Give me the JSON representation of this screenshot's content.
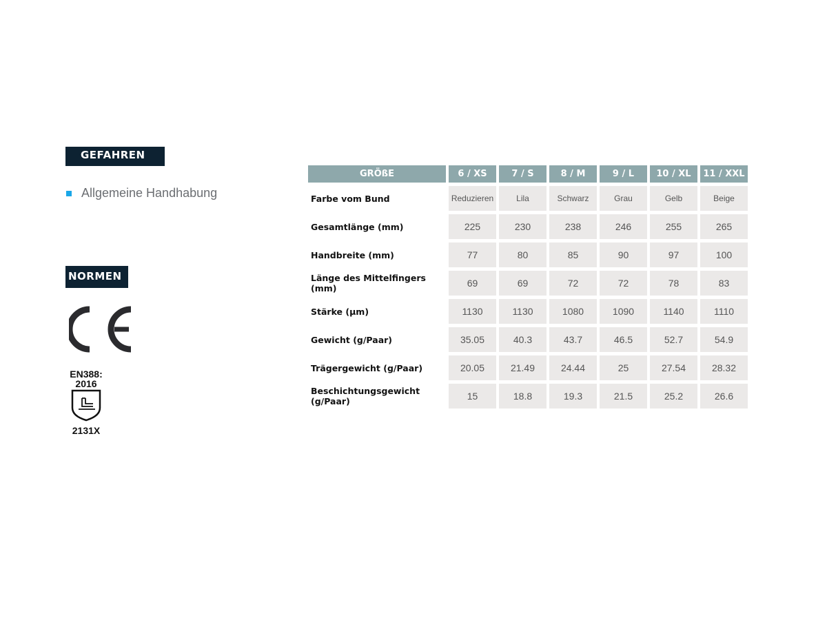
{
  "hazards": {
    "title": "GEFAHREN",
    "items": [
      "Allgemeine Handhabung"
    ]
  },
  "standards": {
    "title": "NORMEN",
    "ce_mark": "CE",
    "en388": {
      "line1": "EN388:",
      "line2": "2016",
      "code": "2131X"
    }
  },
  "colors": {
    "tag_bg": "#0d2232",
    "header_bg": "#8ea8ab",
    "cell_bg": "#ebe9e8",
    "bullet": "#1aa7e8"
  },
  "table": {
    "headers": [
      "GRÖßE",
      "6 / XS",
      "7 / S",
      "8 / M",
      "9 / L",
      "10 / XL",
      "11 / XXL"
    ],
    "rows": [
      {
        "label": "Farbe vom Bund",
        "values": [
          "Reduzieren",
          "Lila",
          "Schwarz",
          "Grau",
          "Gelb",
          "Beige"
        ]
      },
      {
        "label": "Gesamtlänge (mm)",
        "values": [
          "225",
          "230",
          "238",
          "246",
          "255",
          "265"
        ]
      },
      {
        "label": "Handbreite (mm)",
        "values": [
          "77",
          "80",
          "85",
          "90",
          "97",
          "100"
        ]
      },
      {
        "label": "Länge des Mittelfingers (mm)",
        "values": [
          "69",
          "69",
          "72",
          "72",
          "78",
          "83"
        ]
      },
      {
        "label": "Stärke (µm)",
        "values": [
          "1130",
          "1130",
          "1080",
          "1090",
          "1140",
          "1110"
        ]
      },
      {
        "label": "Gewicht (g/Paar)",
        "values": [
          "35.05",
          "40.3",
          "43.7",
          "46.5",
          "52.7",
          "54.9"
        ]
      },
      {
        "label": "Trägergewicht (g/Paar)",
        "values": [
          "20.05",
          "21.49",
          "24.44",
          "25",
          "27.54",
          "28.32"
        ]
      },
      {
        "label": "Beschichtungsgewicht (g/Paar)",
        "values": [
          "15",
          "18.8",
          "19.3",
          "21.5",
          "25.2",
          "26.6"
        ]
      }
    ]
  }
}
